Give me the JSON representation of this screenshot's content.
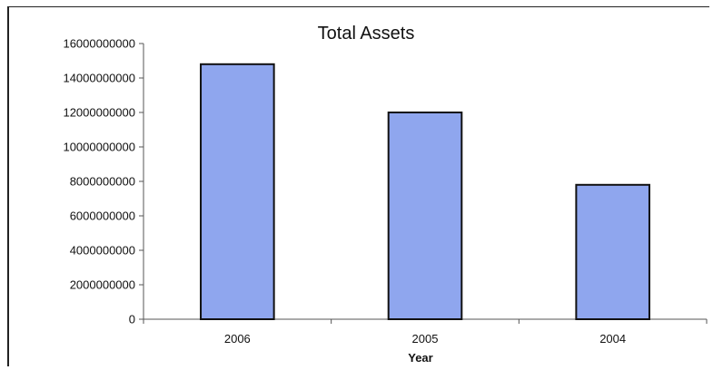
{
  "chart_data": {
    "type": "bar",
    "title": "Total Assets",
    "xlabel": "Year",
    "ylabel": "",
    "categories": [
      "2006",
      "2005",
      "2004"
    ],
    "values": [
      14800000000,
      12000000000,
      7800000000
    ],
    "ylim": [
      0,
      16000000000
    ],
    "yticks": [
      0,
      2000000000,
      4000000000,
      6000000000,
      8000000000,
      10000000000,
      12000000000,
      14000000000,
      16000000000
    ],
    "grid": false,
    "legend": "none",
    "colors": {
      "bar_fill": "#8fa6ee",
      "bar_stroke": "#111111",
      "axis": "#555555"
    }
  }
}
